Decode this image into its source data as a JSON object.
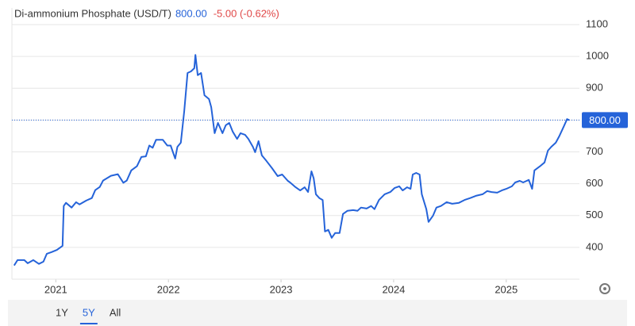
{
  "chart_data": {
    "type": "line",
    "title": "Di-ammonium Phosphate (USD/T)",
    "price": {
      "value": 800,
      "label": "800.00"
    },
    "change": "-5.00 (-0.62%)",
    "color": "#2563d9",
    "price_color": "#2563d9",
    "change_color": "#e04848",
    "x": [
      2020.63,
      2020.66,
      2020.72,
      2020.75,
      2020.8,
      2020.85,
      2020.89,
      2020.92,
      2020.96,
      2021.01,
      2021.06,
      2021.07,
      2021.09,
      2021.14,
      2021.18,
      2021.21,
      2021.27,
      2021.32,
      2021.35,
      2021.39,
      2021.42,
      2021.49,
      2021.55,
      2021.6,
      2021.63,
      2021.67,
      2021.72,
      2021.76,
      2021.8,
      2021.83,
      2021.86,
      2021.89,
      2021.95,
      2021.99,
      2022.02,
      2022.06,
      2022.08,
      2022.11,
      2022.14,
      2022.17,
      2022.2,
      2022.23,
      2022.24,
      2022.26,
      2022.29,
      2022.32,
      2022.36,
      2022.38,
      2022.41,
      2022.44,
      2022.48,
      2022.51,
      2022.54,
      2022.57,
      2022.61,
      2022.64,
      2022.68,
      2022.71,
      2022.75,
      2022.77,
      2022.8,
      2022.83,
      2022.87,
      2022.92,
      2022.97,
      2023.01,
      2023.06,
      2023.08,
      2023.13,
      2023.17,
      2023.21,
      2023.24,
      2023.27,
      2023.29,
      2023.31,
      2023.34,
      2023.37,
      2023.39,
      2023.42,
      2023.45,
      2023.48,
      2023.52,
      2023.55,
      2023.59,
      2023.64,
      2023.68,
      2023.71,
      2023.76,
      2023.8,
      2023.83,
      2023.87,
      2023.92,
      2023.97,
      2024.01,
      2024.05,
      2024.08,
      2024.12,
      2024.15,
      2024.17,
      2024.2,
      2024.23,
      2024.25,
      2024.29,
      2024.31,
      2024.35,
      2024.38,
      2024.42,
      2024.47,
      2024.52,
      2024.58,
      2024.63,
      2024.68,
      2024.73,
      2024.79,
      2024.83,
      2024.87,
      2024.92,
      2024.96,
      2025.0,
      2025.05,
      2025.08,
      2025.12,
      2025.15,
      2025.2,
      2025.23,
      2025.25,
      2025.3,
      2025.34,
      2025.37,
      2025.4,
      2025.44,
      2025.47,
      2025.51,
      2025.54,
      2025.56
    ],
    "values": [
      343,
      360,
      360,
      350,
      360,
      348,
      355,
      380,
      385,
      392,
      405,
      530,
      540,
      525,
      542,
      535,
      547,
      555,
      580,
      590,
      610,
      625,
      630,
      603,
      610,
      642,
      655,
      684,
      686,
      720,
      713,
      738,
      738,
      720,
      720,
      679,
      716,
      729,
      828,
      948,
      953,
      963,
      1005,
      941,
      948,
      878,
      866,
      841,
      759,
      791,
      759,
      784,
      791,
      764,
      741,
      759,
      754,
      741,
      716,
      699,
      734,
      689,
      672,
      649,
      624,
      629,
      609,
      604,
      589,
      579,
      589,
      574,
      639,
      617,
      567,
      555,
      549,
      450,
      455,
      430,
      445,
      445,
      505,
      515,
      517,
      515,
      525,
      522,
      530,
      520,
      549,
      567,
      574,
      587,
      592,
      579,
      589,
      584,
      629,
      634,
      629,
      567,
      520,
      480,
      500,
      525,
      530,
      542,
      537,
      540,
      549,
      555,
      562,
      567,
      577,
      574,
      572,
      579,
      584,
      592,
      604,
      609,
      604,
      612,
      584,
      642,
      655,
      667,
      704,
      716,
      729,
      749,
      779,
      803,
      800
    ],
    "xlim": [
      2020.61,
      2025.65
    ],
    "xticks": [
      2021,
      2022,
      2023,
      2024,
      2025
    ],
    "ylim": [
      300,
      1140
    ],
    "yticks": [
      400,
      500,
      600,
      700,
      800,
      900,
      1000,
      1100
    ],
    "grid": true,
    "range_buttons": [
      "1Y",
      "5Y",
      "All"
    ],
    "active_range": "5Y"
  }
}
